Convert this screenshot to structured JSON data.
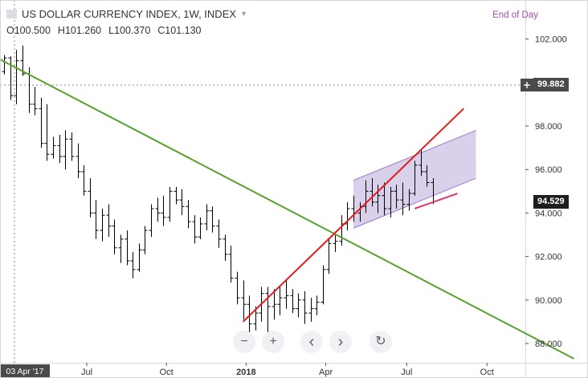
{
  "header": {
    "title": "US DOLLAR CURRENCY INDEX, 1W, INDEX",
    "mode": "End of Day",
    "ohlc": {
      "open": "O100.500",
      "high": "H101.260",
      "low": "L100.370",
      "close": "C101.130"
    }
  },
  "price_labels": {
    "crosshair": "99.882",
    "last": "94.529"
  },
  "x_axis_labels": {
    "cursor_date": "03 Apr '17",
    "ticks": [
      "Jul",
      "Oct",
      "2018",
      "Apr",
      "Jul",
      "Oct"
    ]
  },
  "y_axis_labels": [
    "102.000",
    "100.000",
    "98.000",
    "96.000",
    "94.000",
    "92.000",
    "90.000",
    "88.000"
  ],
  "nav_buttons": {
    "zoom_out": "−",
    "zoom_in": "+",
    "scroll_left": "‹",
    "scroll_right": "›",
    "reset": "↻"
  },
  "colors": {
    "bars": "#000000",
    "down_trendline": "#5aa02c",
    "up_trendline": "#e31c1c",
    "channel_fill": "#b9a9dc",
    "channel_border": "#9b7cc9",
    "midline": "#e0336f",
    "crosshair_badge": "#4a4a4a",
    "last_badge": "#1e1e1e"
  },
  "chart_data": {
    "type": "ohlc",
    "title": "US DOLLAR CURRENCY INDEX, 1W, INDEX",
    "timeframe": "1W",
    "ylim": [
      87.2,
      103.0
    ],
    "grid": false,
    "x_ticks": [
      "Jul",
      "Oct",
      "2018",
      "Apr",
      "Jul",
      "Oct"
    ],
    "last_price": 94.529,
    "crosshair_price": 99.882,
    "crosshair_date": "03 Apr '17",
    "ohlc": [
      [
        100.5,
        101.26,
        100.37,
        101.13
      ],
      [
        101.13,
        101.2,
        99.2,
        99.4
      ],
      [
        99.4,
        101.5,
        99.0,
        101.0
      ],
      [
        101.0,
        101.7,
        100.3,
        100.4
      ],
      [
        100.4,
        100.7,
        98.6,
        99.0
      ],
      [
        99.0,
        99.8,
        98.5,
        98.8
      ],
      [
        98.8,
        99.3,
        97.0,
        97.2
      ],
      [
        97.2,
        99.0,
        96.4,
        96.7
      ],
      [
        96.7,
        97.5,
        96.5,
        97.1
      ],
      [
        97.1,
        97.6,
        96.3,
        96.6
      ],
      [
        96.6,
        97.8,
        96.0,
        97.4
      ],
      [
        97.4,
        97.7,
        96.4,
        96.6
      ],
      [
        96.6,
        97.2,
        95.6,
        95.9
      ],
      [
        95.9,
        96.2,
        94.8,
        95.0
      ],
      [
        95.0,
        95.6,
        93.8,
        94.0
      ],
      [
        94.0,
        94.6,
        92.8,
        93.2
      ],
      [
        93.2,
        94.2,
        92.7,
        93.9
      ],
      [
        93.9,
        94.4,
        92.9,
        93.4
      ],
      [
        93.4,
        93.7,
        92.1,
        92.4
      ],
      [
        92.4,
        93.0,
        91.7,
        92.8
      ],
      [
        92.8,
        93.2,
        91.6,
        91.8
      ],
      [
        91.8,
        92.2,
        91.0,
        91.4
      ],
      [
        91.4,
        92.6,
        91.3,
        92.3
      ],
      [
        92.3,
        93.4,
        92.1,
        93.2
      ],
      [
        93.2,
        94.4,
        92.9,
        94.2
      ],
      [
        94.2,
        94.7,
        93.6,
        94.0
      ],
      [
        94.0,
        94.8,
        93.4,
        93.8
      ],
      [
        93.8,
        95.2,
        93.6,
        95.0
      ],
      [
        95.0,
        95.2,
        94.4,
        94.6
      ],
      [
        94.6,
        95.1,
        93.9,
        94.3
      ],
      [
        94.3,
        94.6,
        93.3,
        93.6
      ],
      [
        93.6,
        93.9,
        92.6,
        92.9
      ],
      [
        92.9,
        93.8,
        92.8,
        93.5
      ],
      [
        93.5,
        94.4,
        93.2,
        94.1
      ],
      [
        94.1,
        94.3,
        93.1,
        93.4
      ],
      [
        93.4,
        93.7,
        92.4,
        92.8
      ],
      [
        92.8,
        93.0,
        91.8,
        92.1
      ],
      [
        92.1,
        92.5,
        90.8,
        91.0
      ],
      [
        91.0,
        91.3,
        89.8,
        90.1
      ],
      [
        90.1,
        90.9,
        89.1,
        89.8
      ],
      [
        89.8,
        90.2,
        88.4,
        88.9
      ],
      [
        88.9,
        89.7,
        88.6,
        89.4
      ],
      [
        89.4,
        90.6,
        89.0,
        90.3
      ],
      [
        90.3,
        90.6,
        88.3,
        89.7
      ],
      [
        89.7,
        90.5,
        89.1,
        89.8
      ],
      [
        89.8,
        90.6,
        89.3,
        90.1
      ],
      [
        90.1,
        90.9,
        89.6,
        90.2
      ],
      [
        90.2,
        90.5,
        89.4,
        89.6
      ],
      [
        89.6,
        90.3,
        89.2,
        90.0
      ],
      [
        90.0,
        90.4,
        88.9,
        89.4
      ],
      [
        89.4,
        90.1,
        89.0,
        89.6
      ],
      [
        89.6,
        90.2,
        89.3,
        89.9
      ],
      [
        89.9,
        91.6,
        89.8,
        91.4
      ],
      [
        91.4,
        92.8,
        91.2,
        92.6
      ],
      [
        92.6,
        93.0,
        92.2,
        92.7
      ],
      [
        92.7,
        93.9,
        92.5,
        93.5
      ],
      [
        93.5,
        94.5,
        93.2,
        94.2
      ],
      [
        94.2,
        94.8,
        93.6,
        94.0
      ],
      [
        94.0,
        94.5,
        93.6,
        94.3
      ],
      [
        94.3,
        95.5,
        94.0,
        95.0
      ],
      [
        95.0,
        95.6,
        94.3,
        94.5
      ],
      [
        94.5,
        95.3,
        94.0,
        94.8
      ],
      [
        94.8,
        95.4,
        93.9,
        94.2
      ],
      [
        94.2,
        95.2,
        93.8,
        95.0
      ],
      [
        95.0,
        95.3,
        94.2,
        94.6
      ],
      [
        94.6,
        95.4,
        93.9,
        94.4
      ],
      [
        94.4,
        95.1,
        94.1,
        94.9
      ],
      [
        94.9,
        96.4,
        94.8,
        96.2
      ],
      [
        96.2,
        96.9,
        95.7,
        95.9
      ],
      [
        95.9,
        96.2,
        95.2,
        95.4
      ],
      [
        95.4,
        95.6,
        94.4,
        94.53
      ]
    ],
    "annotations": [
      {
        "type": "trendline",
        "name": "down_trendline",
        "from": {
          "bar": -5,
          "price": 101.7
        },
        "to": {
          "bar": 93,
          "price": 87.3
        }
      },
      {
        "type": "trendline",
        "name": "up_trendline",
        "from": {
          "bar": 39,
          "price": 89.0
        },
        "to": {
          "bar": 75,
          "price": 98.8
        }
      },
      {
        "type": "parallel_channel",
        "upper": {
          "from": {
            "bar": 57,
            "price": 95.5
          },
          "to": {
            "bar": 77,
            "price": 97.8
          }
        },
        "lower": {
          "from": {
            "bar": 57,
            "price": 93.3
          },
          "to": {
            "bar": 77,
            "price": 95.6
          }
        }
      },
      {
        "type": "trendline",
        "name": "midline",
        "from": {
          "bar": 67,
          "price": 94.2
        },
        "to": {
          "bar": 74,
          "price": 94.9
        }
      }
    ]
  }
}
